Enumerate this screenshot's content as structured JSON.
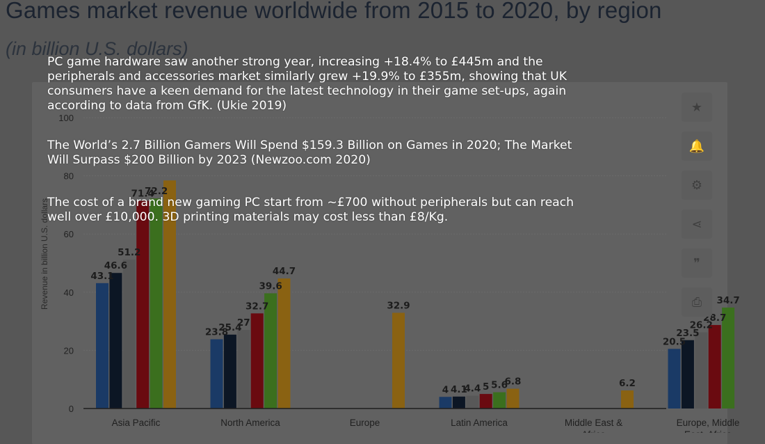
{
  "title": "Games market revenue worldwide from 2015 to 2020, by region",
  "subtitle": "(in billion U.S. dollars)",
  "overlay": {
    "paragraphs": [
      "PC game hardware saw another strong year, increasing +18.4% to £445m and the peripherals and accessories market similarly grew +19.9% to £355m, showing that UK consumers have a keen demand for the latest technology in their game set-ups, again according to data from GfK. (Ukie 2019)",
      "The World’s 2.7 Billion Gamers Will Spend $159.3 Billion on Games in 2020; The Market Will Surpass $200 Billion by 2023 (Newzoo.com 2020)",
      "The cost of a brand new gaming PC start from ~£700 without peripherals but can reach well over £10,000. 3D printing materials may cost less than £8/Kg."
    ]
  },
  "toolbar": [
    {
      "name": "star-icon",
      "glyph": "★"
    },
    {
      "name": "bell-icon",
      "glyph": "🔔"
    },
    {
      "name": "gear-icon",
      "glyph": "⚙"
    },
    {
      "name": "share-icon",
      "glyph": "⋖"
    },
    {
      "name": "quote-icon",
      "glyph": "❞"
    },
    {
      "name": "print-icon",
      "glyph": "⎙"
    }
  ],
  "chart_data": {
    "type": "bar",
    "title": "Games market revenue worldwide from 2015 to 2020, by region",
    "subtitle": "(in billion U.S. dollars)",
    "ylabel": "Revenue in billion U.S. dollars",
    "ylim": [
      0,
      100
    ],
    "yticks": [
      0,
      20,
      40,
      60,
      80,
      100
    ],
    "grid": true,
    "categories": [
      "Asia Pacific",
      "North America",
      "Europe",
      "Latin America",
      "Middle East & Africa",
      "Europe, Middle East, Africa"
    ],
    "category_labels": [
      [
        "Asia Pacific"
      ],
      [
        "North America"
      ],
      [
        "Europe"
      ],
      [
        "Latin America"
      ],
      [
        "Middle East &",
        "Africa"
      ],
      [
        "Europe, Middle",
        "East, Africa"
      ]
    ],
    "series_colors": [
      "#1a3a66",
      "#0c1624",
      "#585858",
      "#6a0a10",
      "#3b6f1e",
      "#8a6212"
    ],
    "series": [
      {
        "values": [
          43.1,
          23.8,
          null,
          4,
          null,
          20.5
        ],
        "labels": [
          "43.1",
          "23.8",
          "",
          "4",
          "",
          "20.5"
        ]
      },
      {
        "values": [
          46.6,
          25.4,
          null,
          4.1,
          null,
          23.5
        ],
        "labels": [
          "46.6",
          "25.4",
          "",
          "4.1",
          "",
          "23.5"
        ]
      },
      {
        "values": [
          51.2,
          27,
          null,
          4.4,
          null,
          26.2
        ],
        "labels": [
          "51.2",
          "27",
          "",
          "4.4",
          "",
          "26.2"
        ]
      },
      {
        "values": [
          71.4,
          32.7,
          null,
          5,
          null,
          28.7
        ],
        "labels": [
          "71.4",
          "32.7",
          "",
          "5",
          "",
          "28.7"
        ]
      },
      {
        "values": [
          72.2,
          39.6,
          null,
          5.6,
          null,
          34.7
        ],
        "labels": [
          "72.2",
          "39.6",
          "",
          "5.6",
          "",
          "34.7"
        ]
      },
      {
        "values": [
          78.4,
          44.7,
          32.9,
          6.8,
          6.2,
          null
        ],
        "labels": [
          "",
          "44.7",
          "32.9",
          "6.8",
          "6.2",
          ""
        ]
      }
    ]
  }
}
